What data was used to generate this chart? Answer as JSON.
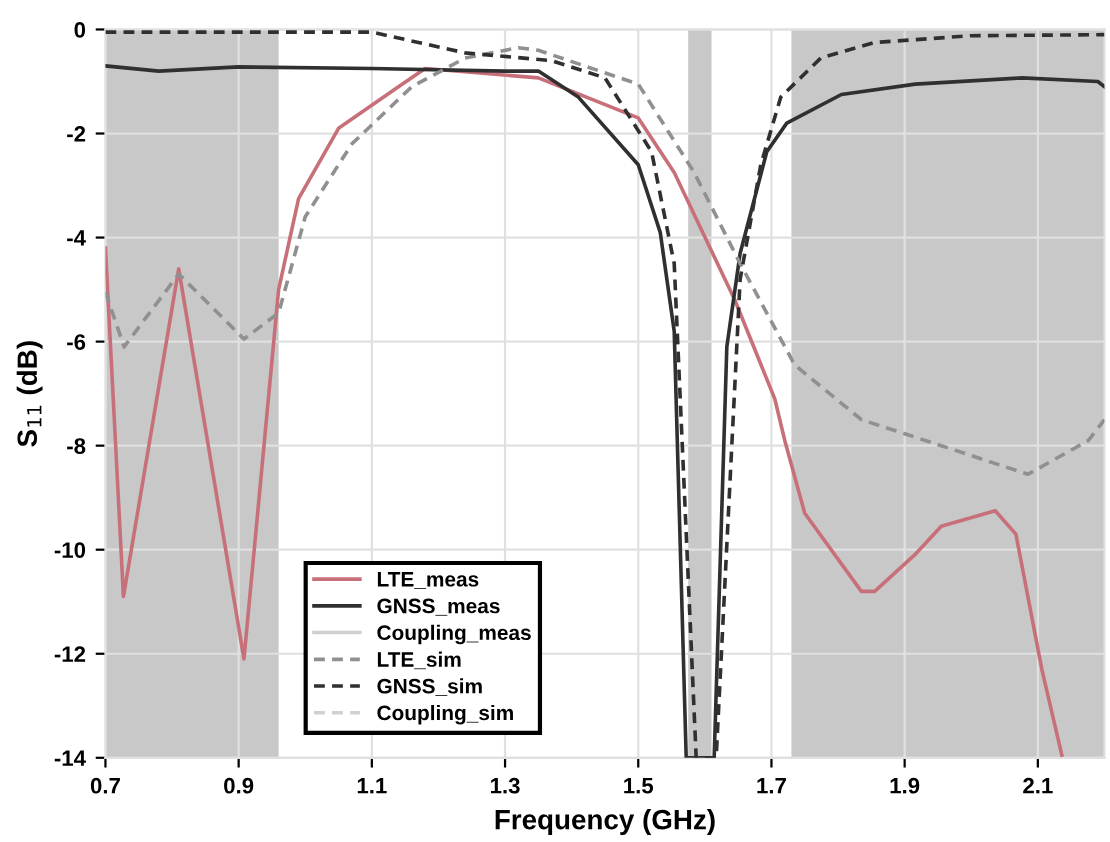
{
  "chart_data": {
    "type": "line",
    "xlabel": "Frequency (GHz)",
    "ylabel": "S$_{11}$ (dB)",
    "xlim": [
      0.7,
      2.2
    ],
    "xticks": [
      0.7,
      0.9,
      1.1,
      1.3,
      1.5,
      1.7,
      1.9,
      2.1
    ],
    "ylim": [
      -14,
      0
    ],
    "yticks": [
      -14,
      -12,
      -10,
      -8,
      -6,
      -4,
      -2,
      0
    ],
    "grid": true,
    "legend": "bottom left",
    "bands": [
      {
        "axis": "x",
        "from": 0.7,
        "to": 0.96,
        "color": "#c8c8c8"
      },
      {
        "axis": "x",
        "from": 1.575,
        "to": 1.61,
        "color": "#c8c8c8"
      },
      {
        "axis": "x",
        "from": 1.73,
        "to": 2.2,
        "color": "#c8c8c8"
      }
    ],
    "series": [
      {
        "name": "LTE_meas",
        "color": "#c8707a",
        "line_style": "solid",
        "x": [
          0.7,
          0.727,
          0.81,
          0.908,
          0.96,
          0.99,
          1.05,
          1.14,
          1.18,
          1.35,
          1.5,
          1.554,
          1.645,
          1.705,
          1.72,
          1.75,
          1.835,
          1.855,
          1.915,
          1.955,
          2.036,
          2.067,
          2.106,
          2.136
        ],
        "values": [
          -4.2,
          -10.9,
          -4.6,
          -12.1,
          -5.0,
          -3.25,
          -1.9,
          -1.1,
          -0.75,
          -0.93,
          -1.7,
          -2.75,
          -5.2,
          -7.1,
          -7.9,
          -9.3,
          -10.8,
          -10.8,
          -10.1,
          -9.55,
          -9.25,
          -9.7,
          -12.3,
          -13.95
        ]
      },
      {
        "name": "GNSS_meas",
        "color": "#303030",
        "line_style": "solid",
        "x": [
          0.7,
          0.78,
          0.9,
          1.1,
          1.3,
          1.35,
          1.41,
          1.5,
          1.533,
          1.554,
          1.572,
          1.614,
          1.633,
          1.653,
          1.693,
          1.723,
          1.805,
          1.916,
          2.076,
          2.19,
          2.2
        ],
        "values": [
          -0.7,
          -0.8,
          -0.72,
          -0.75,
          -0.8,
          -0.8,
          -1.3,
          -2.6,
          -3.9,
          -5.8,
          -14,
          -14,
          -6.1,
          -4.3,
          -2.35,
          -1.8,
          -1.25,
          -1.05,
          -0.93,
          -1.0,
          -1.1
        ]
      },
      {
        "name": "Coupling_meas",
        "color": "#d0d0d0",
        "line_style": "solid"
      },
      {
        "name": "LTE_sim",
        "color": "#909090",
        "line_style": "dashed",
        "x": [
          0.7,
          0.728,
          0.81,
          0.908,
          0.96,
          1.0,
          1.07,
          1.16,
          1.24,
          1.32,
          1.35,
          1.5,
          1.584,
          1.653,
          1.735,
          1.835,
          1.955,
          2.085,
          2.176,
          2.2
        ],
        "values": [
          -5.05,
          -6.1,
          -4.7,
          -5.95,
          -5.45,
          -3.6,
          -2.2,
          -1.1,
          -0.55,
          -0.35,
          -0.4,
          -1.05,
          -2.75,
          -4.5,
          -6.45,
          -7.5,
          -8.0,
          -8.55,
          -7.9,
          -7.5
        ]
      },
      {
        "name": "GNSS_sim",
        "color": "#303030",
        "line_style": "dashed",
        "x": [
          0.7,
          1.1,
          1.24,
          1.37,
          1.45,
          1.52,
          1.554,
          1.587,
          1.617,
          1.653,
          1.684,
          1.714,
          1.774,
          1.855,
          2.0,
          2.2
        ],
        "values": [
          -0.05,
          -0.05,
          -0.45,
          -0.6,
          -0.93,
          -2.35,
          -4.5,
          -14,
          -14,
          -4.8,
          -2.6,
          -1.3,
          -0.55,
          -0.25,
          -0.12,
          -0.1
        ]
      },
      {
        "name": "Coupling_sim",
        "color": "#d0d0d0",
        "line_style": "dashed"
      }
    ]
  }
}
